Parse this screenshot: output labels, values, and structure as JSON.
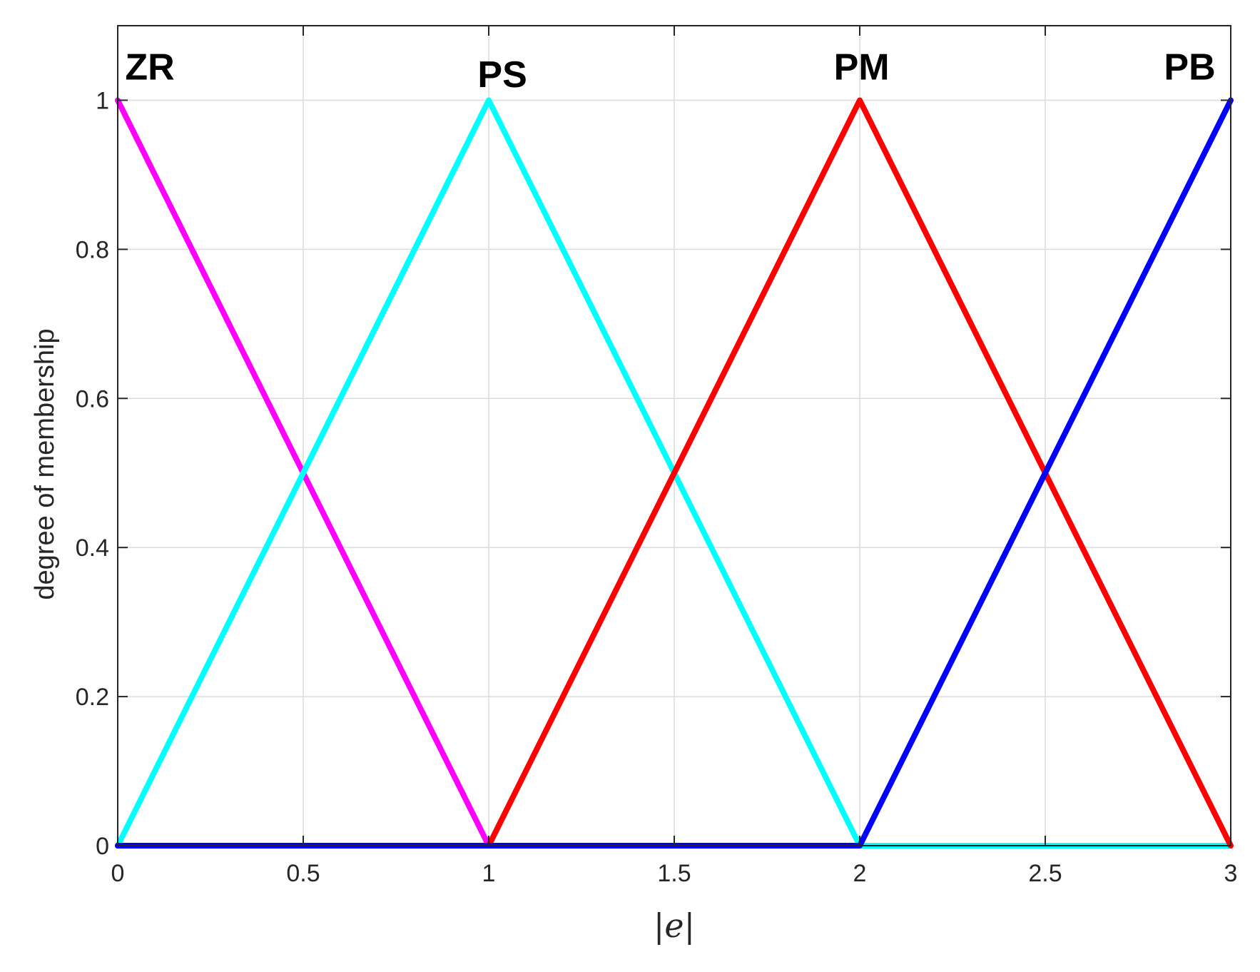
{
  "chart_data": {
    "type": "line",
    "title": "",
    "xlabel": "|e|",
    "ylabel": "degree of membership",
    "xlim": [
      0,
      3
    ],
    "ylim": [
      0,
      1.1
    ],
    "grid": true,
    "xticks": [
      0,
      0.5,
      1,
      1.5,
      2,
      2.5,
      3
    ],
    "xtick_labels": [
      "0",
      "0.5",
      "1",
      "1.5",
      "2",
      "2.5",
      "3"
    ],
    "yticks": [
      0,
      0.2,
      0.4,
      0.6,
      0.8,
      1
    ],
    "ytick_labels": [
      "0",
      "0.2",
      "0.4",
      "0.6",
      "0.8",
      "1"
    ],
    "series": [
      {
        "name": "ZR",
        "color": "#FF00FF",
        "x": [
          0,
          1,
          3
        ],
        "y": [
          1,
          0,
          0
        ]
      },
      {
        "name": "PS",
        "color": "#00FFFF",
        "x": [
          0,
          1,
          2,
          3
        ],
        "y": [
          0,
          1,
          0,
          0
        ]
      },
      {
        "name": "PM",
        "color": "#FF0000",
        "x": [
          0,
          1,
          2,
          3
        ],
        "y": [
          0,
          0,
          1,
          0
        ]
      },
      {
        "name": "PB",
        "color": "#0000FF",
        "x": [
          0,
          2,
          3
        ],
        "y": [
          0,
          0,
          1
        ]
      }
    ],
    "annotations": [
      {
        "text": "ZR",
        "x": 0.02,
        "y": 1.045
      },
      {
        "text": "PS",
        "x": 0.97,
        "y": 1.035
      },
      {
        "text": "PM",
        "x": 1.93,
        "y": 1.045
      },
      {
        "text": "PB",
        "x": 2.82,
        "y": 1.045
      }
    ]
  }
}
